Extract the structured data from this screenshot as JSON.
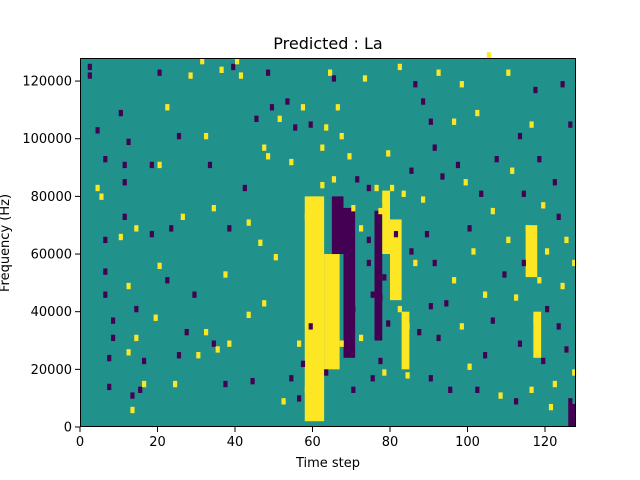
{
  "chart_data": {
    "type": "heatmap",
    "title": "Predicted : La",
    "xlabel": "Time step",
    "ylabel": "Frequency (Hz)",
    "xlim": [
      0,
      128
    ],
    "ylim": [
      0,
      128000
    ],
    "xticks": [
      0,
      20,
      40,
      60,
      80,
      100,
      120
    ],
    "yticks": [
      0,
      20000,
      40000,
      60000,
      80000,
      100000,
      120000
    ],
    "grid": false,
    "legend": "none",
    "colormap": "viridis",
    "levels": {
      "low": -1,
      "mid": 0,
      "high": 1
    },
    "colors": {
      "low": "#440154",
      "mid": "#21918c",
      "high": "#fde725"
    },
    "background_value": 0,
    "grid_size": {
      "time_steps": 128,
      "frequency_bins": 128
    },
    "cells": [
      [
        2,
        124,
        -1
      ],
      [
        2,
        121,
        -1
      ],
      [
        4,
        102,
        -1
      ],
      [
        4,
        82,
        1
      ],
      [
        5,
        79,
        1
      ],
      [
        6,
        92,
        -1
      ],
      [
        6,
        64,
        -1
      ],
      [
        6,
        53,
        -1
      ],
      [
        6,
        45,
        -1
      ],
      [
        7,
        23,
        -1
      ],
      [
        7,
        13,
        -1
      ],
      [
        8,
        36,
        -1
      ],
      [
        8,
        30,
        -1
      ],
      [
        10,
        108,
        -1
      ],
      [
        10,
        65,
        1
      ],
      [
        11,
        90,
        -1
      ],
      [
        11,
        84,
        -1
      ],
      [
        11,
        72,
        -1
      ],
      [
        12,
        98,
        -1
      ],
      [
        12,
        48,
        1
      ],
      [
        12,
        25,
        1
      ],
      [
        13,
        10,
        -1
      ],
      [
        13,
        5,
        1
      ],
      [
        14,
        68,
        1
      ],
      [
        14,
        40,
        -1
      ],
      [
        14,
        30,
        1
      ],
      [
        15,
        12,
        -1
      ],
      [
        16,
        22,
        -1
      ],
      [
        16,
        14,
        1
      ],
      [
        18,
        90,
        -1
      ],
      [
        18,
        66,
        -1
      ],
      [
        19,
        37,
        1
      ],
      [
        20,
        122,
        -1
      ],
      [
        20,
        90,
        1
      ],
      [
        20,
        55,
        1
      ],
      [
        22,
        110,
        1
      ],
      [
        22,
        50,
        -1
      ],
      [
        23,
        68,
        -1
      ],
      [
        24,
        14,
        1
      ],
      [
        25,
        100,
        -1
      ],
      [
        25,
        24,
        -1
      ],
      [
        26,
        72,
        1
      ],
      [
        27,
        32,
        -1
      ],
      [
        28,
        121,
        1
      ],
      [
        29,
        45,
        -1
      ],
      [
        30,
        24,
        1
      ],
      [
        31,
        126,
        1
      ],
      [
        32,
        100,
        1
      ],
      [
        32,
        32,
        1
      ],
      [
        33,
        90,
        -1
      ],
      [
        34,
        75,
        1
      ],
      [
        34,
        28,
        -1
      ],
      [
        35,
        26,
        1
      ],
      [
        36,
        123,
        1
      ],
      [
        37,
        52,
        1
      ],
      [
        37,
        14,
        -1
      ],
      [
        38,
        68,
        -1
      ],
      [
        38,
        28,
        1
      ],
      [
        39,
        124,
        -1
      ],
      [
        40,
        126,
        1
      ],
      [
        41,
        121,
        1
      ],
      [
        42,
        82,
        -1
      ],
      [
        43,
        70,
        1
      ],
      [
        43,
        38,
        1
      ],
      [
        44,
        15,
        -1
      ],
      [
        45,
        106,
        -1
      ],
      [
        46,
        63,
        1
      ],
      [
        47,
        96,
        1
      ],
      [
        47,
        42,
        1
      ],
      [
        48,
        122,
        -1
      ],
      [
        48,
        93,
        1
      ],
      [
        49,
        110,
        -1
      ],
      [
        50,
        58,
        1
      ],
      [
        51,
        106,
        1
      ],
      [
        52,
        8,
        1
      ],
      [
        53,
        112,
        -1
      ],
      [
        54,
        91,
        1
      ],
      [
        54,
        16,
        -1
      ],
      [
        55,
        103,
        -1
      ],
      [
        56,
        28,
        1
      ],
      [
        56,
        9,
        -1
      ],
      [
        57,
        110,
        1
      ],
      [
        57,
        21,
        -1
      ],
      [
        58,
        72,
        1
      ],
      [
        58,
        12,
        1
      ],
      [
        59,
        104,
        -1
      ],
      [
        59,
        34,
        -1
      ],
      [
        60,
        68,
        1
      ],
      [
        61,
        77,
        1
      ],
      [
        62,
        96,
        1
      ],
      [
        62,
        83,
        1
      ],
      [
        63,
        103,
        1
      ],
      [
        63,
        18,
        -1
      ],
      [
        64,
        122,
        1
      ],
      [
        65,
        85,
        1
      ],
      [
        65,
        120,
        -1
      ],
      [
        66,
        110,
        1
      ],
      [
        67,
        100,
        1
      ],
      [
        67,
        28,
        1
      ],
      [
        68,
        64,
        -1
      ],
      [
        69,
        93,
        1
      ],
      [
        70,
        75,
        1
      ],
      [
        70,
        40,
        -1
      ],
      [
        70,
        12,
        -1
      ],
      [
        71,
        85,
        -1
      ],
      [
        72,
        68,
        1
      ],
      [
        72,
        30,
        1
      ],
      [
        73,
        120,
        1
      ],
      [
        74,
        82,
        -1
      ],
      [
        74,
        64,
        -1
      ],
      [
        74,
        56,
        -1
      ],
      [
        75,
        45,
        -1
      ],
      [
        75,
        16,
        -1
      ],
      [
        76,
        82,
        1
      ],
      [
        76,
        61,
        -1
      ],
      [
        77,
        74,
        1
      ],
      [
        77,
        44,
        -1
      ],
      [
        77,
        22,
        -1
      ],
      [
        78,
        78,
        1
      ],
      [
        78,
        51,
        -1
      ],
      [
        78,
        18,
        1
      ],
      [
        79,
        94,
        1
      ],
      [
        79,
        35,
        -1
      ],
      [
        80,
        82,
        1
      ],
      [
        81,
        66,
        -1
      ],
      [
        81,
        50,
        1
      ],
      [
        82,
        124,
        1
      ],
      [
        82,
        40,
        1
      ],
      [
        83,
        80,
        1
      ],
      [
        84,
        34,
        1
      ],
      [
        84,
        17,
        1
      ],
      [
        85,
        88,
        -1
      ],
      [
        85,
        60,
        -1
      ],
      [
        86,
        118,
        -1
      ],
      [
        86,
        56,
        1
      ],
      [
        87,
        32,
        -1
      ],
      [
        88,
        112,
        -1
      ],
      [
        88,
        78,
        1
      ],
      [
        89,
        66,
        -1
      ],
      [
        90,
        105,
        -1
      ],
      [
        90,
        41,
        -1
      ],
      [
        90,
        16,
        -1
      ],
      [
        91,
        96,
        -1
      ],
      [
        91,
        56,
        -1
      ],
      [
        92,
        122,
        1
      ],
      [
        92,
        30,
        -1
      ],
      [
        93,
        86,
        -1
      ],
      [
        94,
        42,
        -1
      ],
      [
        95,
        12,
        -1
      ],
      [
        96,
        105,
        1
      ],
      [
        96,
        50,
        1
      ],
      [
        97,
        90,
        -1
      ],
      [
        98,
        118,
        1
      ],
      [
        98,
        34,
        1
      ],
      [
        99,
        84,
        1
      ],
      [
        100,
        68,
        -1
      ],
      [
        100,
        20,
        1
      ],
      [
        101,
        60,
        1
      ],
      [
        102,
        108,
        1
      ],
      [
        102,
        12,
        -1
      ],
      [
        103,
        80,
        -1
      ],
      [
        104,
        45,
        1
      ],
      [
        104,
        24,
        -1
      ],
      [
        105,
        128,
        1
      ],
      [
        106,
        74,
        1
      ],
      [
        106,
        36,
        -1
      ],
      [
        107,
        92,
        -1
      ],
      [
        108,
        10,
        1
      ],
      [
        109,
        52,
        -1
      ],
      [
        110,
        122,
        1
      ],
      [
        110,
        64,
        1
      ],
      [
        111,
        88,
        1
      ],
      [
        112,
        8,
        -1
      ],
      [
        112,
        44,
        1
      ],
      [
        113,
        100,
        -1
      ],
      [
        113,
        28,
        -1
      ],
      [
        114,
        56,
        -1
      ],
      [
        114,
        80,
        -1
      ],
      [
        115,
        68,
        1
      ],
      [
        116,
        104,
        1
      ],
      [
        116,
        12,
        1
      ],
      [
        117,
        116,
        -1
      ],
      [
        117,
        36,
        1
      ],
      [
        118,
        92,
        -1
      ],
      [
        118,
        50,
        1
      ],
      [
        119,
        76,
        1
      ],
      [
        119,
        22,
        -1
      ],
      [
        120,
        60,
        1
      ],
      [
        120,
        40,
        -1
      ],
      [
        121,
        6,
        1
      ],
      [
        122,
        84,
        -1
      ],
      [
        122,
        14,
        1
      ],
      [
        123,
        72,
        -1
      ],
      [
        123,
        34,
        -1
      ],
      [
        124,
        118,
        -1
      ],
      [
        124,
        48,
        1
      ],
      [
        125,
        64,
        1
      ],
      [
        125,
        26,
        -1
      ],
      [
        126,
        104,
        -1
      ],
      [
        126,
        8,
        -1
      ],
      [
        127,
        56,
        1
      ],
      [
        127,
        18,
        1
      ]
    ],
    "bands": [
      {
        "x_range": [
          58,
          63
        ],
        "y_range": [
          2000,
          80000
        ],
        "value": 1
      },
      {
        "x_range": [
          63,
          67
        ],
        "y_range": [
          20000,
          60000
        ],
        "value": 1
      },
      {
        "x_range": [
          65,
          68
        ],
        "y_range": [
          60000,
          80000
        ],
        "value": -1
      },
      {
        "x_range": [
          68,
          71
        ],
        "y_range": [
          24000,
          76000
        ],
        "value": -1
      },
      {
        "x_range": [
          76,
          78
        ],
        "y_range": [
          30000,
          75000
        ],
        "value": -1
      },
      {
        "x_range": [
          78,
          80
        ],
        "y_range": [
          60000,
          82000
        ],
        "value": 1
      },
      {
        "x_range": [
          80,
          83
        ],
        "y_range": [
          44000,
          72000
        ],
        "value": 1
      },
      {
        "x_range": [
          83,
          85
        ],
        "y_range": [
          20000,
          40000
        ],
        "value": 1
      },
      {
        "x_range": [
          115,
          118
        ],
        "y_range": [
          52000,
          70000
        ],
        "value": 1
      },
      {
        "x_range": [
          117,
          119
        ],
        "y_range": [
          24000,
          40000
        ],
        "value": 1
      },
      {
        "x_range": [
          126,
          128
        ],
        "y_range": [
          0,
          8000
        ],
        "value": -1
      }
    ]
  }
}
